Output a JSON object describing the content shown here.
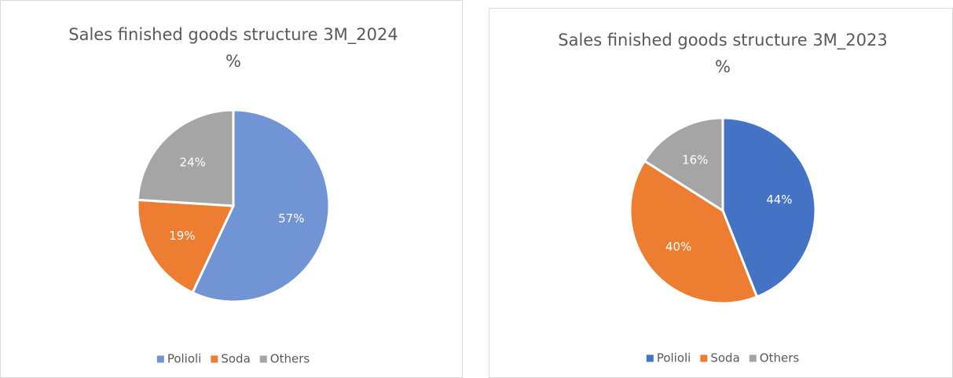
{
  "chart_data": [
    {
      "type": "pie",
      "title": "Sales finished goods structure 3M_2024",
      "subtitle": "%",
      "categories": [
        "Polioli",
        "Soda",
        "Others"
      ],
      "values": [
        57,
        19,
        24
      ],
      "value_labels": [
        "57%",
        "19%",
        "24%"
      ],
      "colors": [
        "#7094d4",
        "#ed7d31",
        "#a5a5a5"
      ],
      "legend": "bottom"
    },
    {
      "type": "pie",
      "title": "Sales finished goods structure 3M_2023",
      "subtitle": "%",
      "categories": [
        "Polioli",
        "Soda",
        "Others"
      ],
      "values": [
        44,
        40,
        16
      ],
      "value_labels": [
        "44%",
        "40%",
        "16%"
      ],
      "colors": [
        "#4472c4",
        "#ed7d31",
        "#a5a5a5"
      ],
      "legend": "bottom"
    }
  ]
}
